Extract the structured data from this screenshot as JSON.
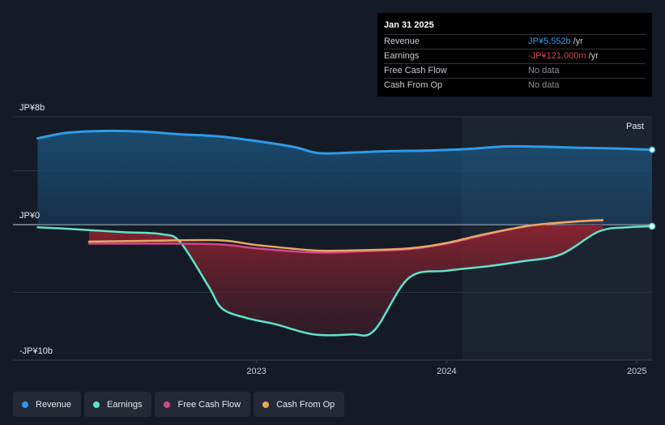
{
  "tooltip": {
    "date": "Jan 31 2025",
    "rows": [
      {
        "label": "Revenue",
        "value": "JP¥5.552b",
        "unit": "/yr",
        "color": "#2d9ce6"
      },
      {
        "label": "Earnings",
        "value": "-JP¥121.000m",
        "unit": "/yr",
        "color": "#e0414b"
      },
      {
        "label": "Free Cash Flow",
        "value": "No data",
        "unit": "",
        "color": "#8a8f96"
      },
      {
        "label": "Cash From Op",
        "value": "No data",
        "unit": "",
        "color": "#8a8f96"
      }
    ]
  },
  "past_label": "Past",
  "legend": [
    {
      "label": "Revenue",
      "color": "#2e9be6"
    },
    {
      "label": "Earnings",
      "color": "#5fe3cc"
    },
    {
      "label": "Free Cash Flow",
      "color": "#d6468c"
    },
    {
      "label": "Cash From Op",
      "color": "#e8a862"
    }
  ],
  "chart_data": {
    "type": "line",
    "y_unit": "JP¥ billions",
    "ylim": [
      -10,
      8
    ],
    "y_tick_labels": [
      {
        "value": 8,
        "label": "JP¥8b"
      },
      {
        "value": 0,
        "label": "JP¥0"
      },
      {
        "value": -10,
        "label": "-JP¥10b"
      }
    ],
    "xlim": [
      2021.72,
      2025.08
    ],
    "x_tick_labels": [
      {
        "value": 2023.0,
        "label": "2023"
      },
      {
        "value": 2024.0,
        "label": "2024"
      },
      {
        "value": 2025.0,
        "label": "2025"
      }
    ],
    "past_region_start": 2024.08,
    "grid": true,
    "legend_position": "bottom-left",
    "series": [
      {
        "name": "Revenue",
        "color": "#2e9be6",
        "x": [
          2021.85,
          2022.0,
          2022.2,
          2022.4,
          2022.6,
          2022.8,
          2023.0,
          2023.2,
          2023.33,
          2023.5,
          2023.7,
          2023.9,
          2024.1,
          2024.3,
          2024.5,
          2024.7,
          2024.9,
          2025.08
        ],
        "y": [
          6.4,
          6.8,
          6.95,
          6.9,
          6.7,
          6.55,
          6.2,
          5.75,
          5.3,
          5.35,
          5.45,
          5.5,
          5.6,
          5.8,
          5.78,
          5.7,
          5.65,
          5.55
        ]
      },
      {
        "name": "Earnings",
        "color": "#5fe3cc",
        "x": [
          2021.85,
          2022.0,
          2022.3,
          2022.5,
          2022.6,
          2022.75,
          2022.82,
          2022.95,
          2023.1,
          2023.3,
          2023.5,
          2023.62,
          2023.8,
          2024.0,
          2024.2,
          2024.4,
          2024.6,
          2024.8,
          2024.95,
          2025.08
        ],
        "y": [
          -0.2,
          -0.3,
          -0.55,
          -0.7,
          -1.3,
          -4.6,
          -6.2,
          -6.9,
          -7.35,
          -8.1,
          -8.1,
          -7.8,
          -3.95,
          -3.4,
          -3.1,
          -2.7,
          -2.2,
          -0.5,
          -0.2,
          -0.12
        ]
      },
      {
        "name": "Free Cash Flow",
        "color": "#d6468c",
        "x": [
          2022.12,
          2022.4,
          2022.8,
          2023.0,
          2023.3,
          2023.5,
          2023.8,
          2024.0,
          2024.2,
          2024.45,
          2024.7,
          2024.82
        ],
        "y": [
          -1.4,
          -1.4,
          -1.45,
          -1.75,
          -2.05,
          -2.0,
          -1.8,
          -1.4,
          -0.75,
          -0.05,
          0.25,
          0.3
        ]
      },
      {
        "name": "Cash From Op",
        "color": "#e8a862",
        "x": [
          2022.12,
          2022.4,
          2022.8,
          2023.0,
          2023.3,
          2023.5,
          2023.8,
          2024.0,
          2024.2,
          2024.45,
          2024.7,
          2024.82
        ],
        "y": [
          -1.25,
          -1.2,
          -1.15,
          -1.5,
          -1.9,
          -1.9,
          -1.75,
          -1.35,
          -0.7,
          -0.05,
          0.25,
          0.35
        ]
      }
    ]
  }
}
